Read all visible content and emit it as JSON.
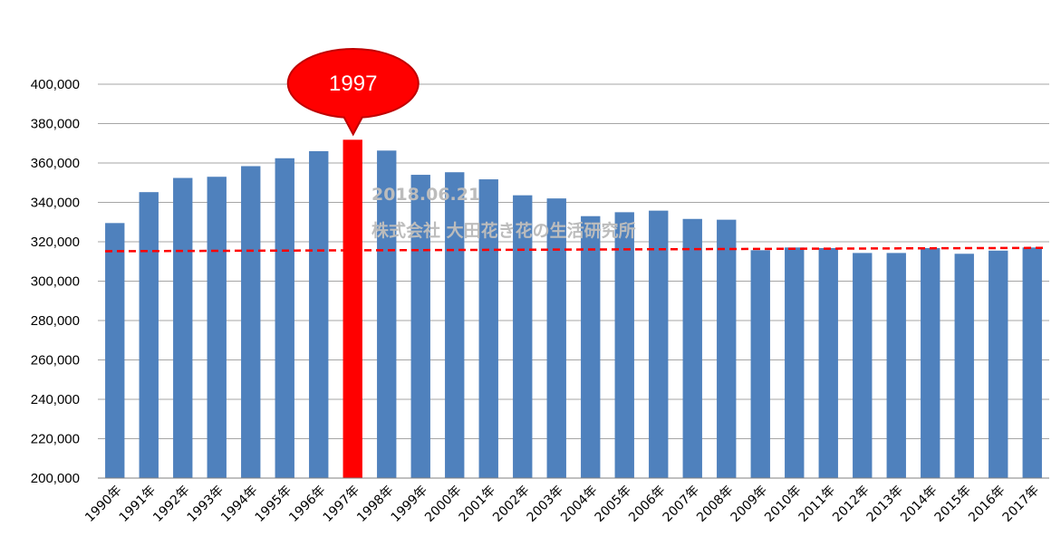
{
  "chart_data": {
    "type": "bar",
    "categories": [
      "1990年",
      "1991年",
      "1992年",
      "1993年",
      "1994年",
      "1995年",
      "1996年",
      "1997年",
      "1998年",
      "1999年",
      "2000年",
      "2001年",
      "2002年",
      "2003年",
      "2004年",
      "2005年",
      "2006年",
      "2007年",
      "2008年",
      "2009年",
      "2010年",
      "2011年",
      "2012年",
      "2013年",
      "2014年",
      "2015年",
      "2016年",
      "2017年"
    ],
    "values": [
      329500,
      345200,
      352400,
      353000,
      358400,
      362400,
      366000,
      371800,
      366300,
      354000,
      355300,
      351700,
      343600,
      342000,
      333000,
      335000,
      335800,
      331600,
      331200,
      315700,
      317100,
      316800,
      314300,
      314300,
      316800,
      313900,
      315500,
      317100
    ],
    "ylim": [
      200000,
      400000
    ],
    "yticks": [
      200000,
      220000,
      240000,
      260000,
      280000,
      300000,
      320000,
      340000,
      360000,
      380000,
      400000
    ],
    "ytick_labels": [
      "200,000",
      "220,000",
      "240,000",
      "260,000",
      "280,000",
      "300,000",
      "320,000",
      "340,000",
      "360,000",
      "380,000",
      "400,000"
    ],
    "grid": true,
    "highlight_index": 7,
    "trend_line": {
      "style": "dashed",
      "color": "#ff0000",
      "start_value": 315200,
      "end_value": 316900
    },
    "annotation": {
      "text": "1997",
      "category": "1997年"
    },
    "colors": {
      "bar": "#4f81bd",
      "highlight": "#ff0000",
      "grid": "#a6a6a6"
    }
  },
  "watermark": {
    "date": "2018.06.21",
    "org": "株式会社 大田花き花の生活研究所"
  }
}
